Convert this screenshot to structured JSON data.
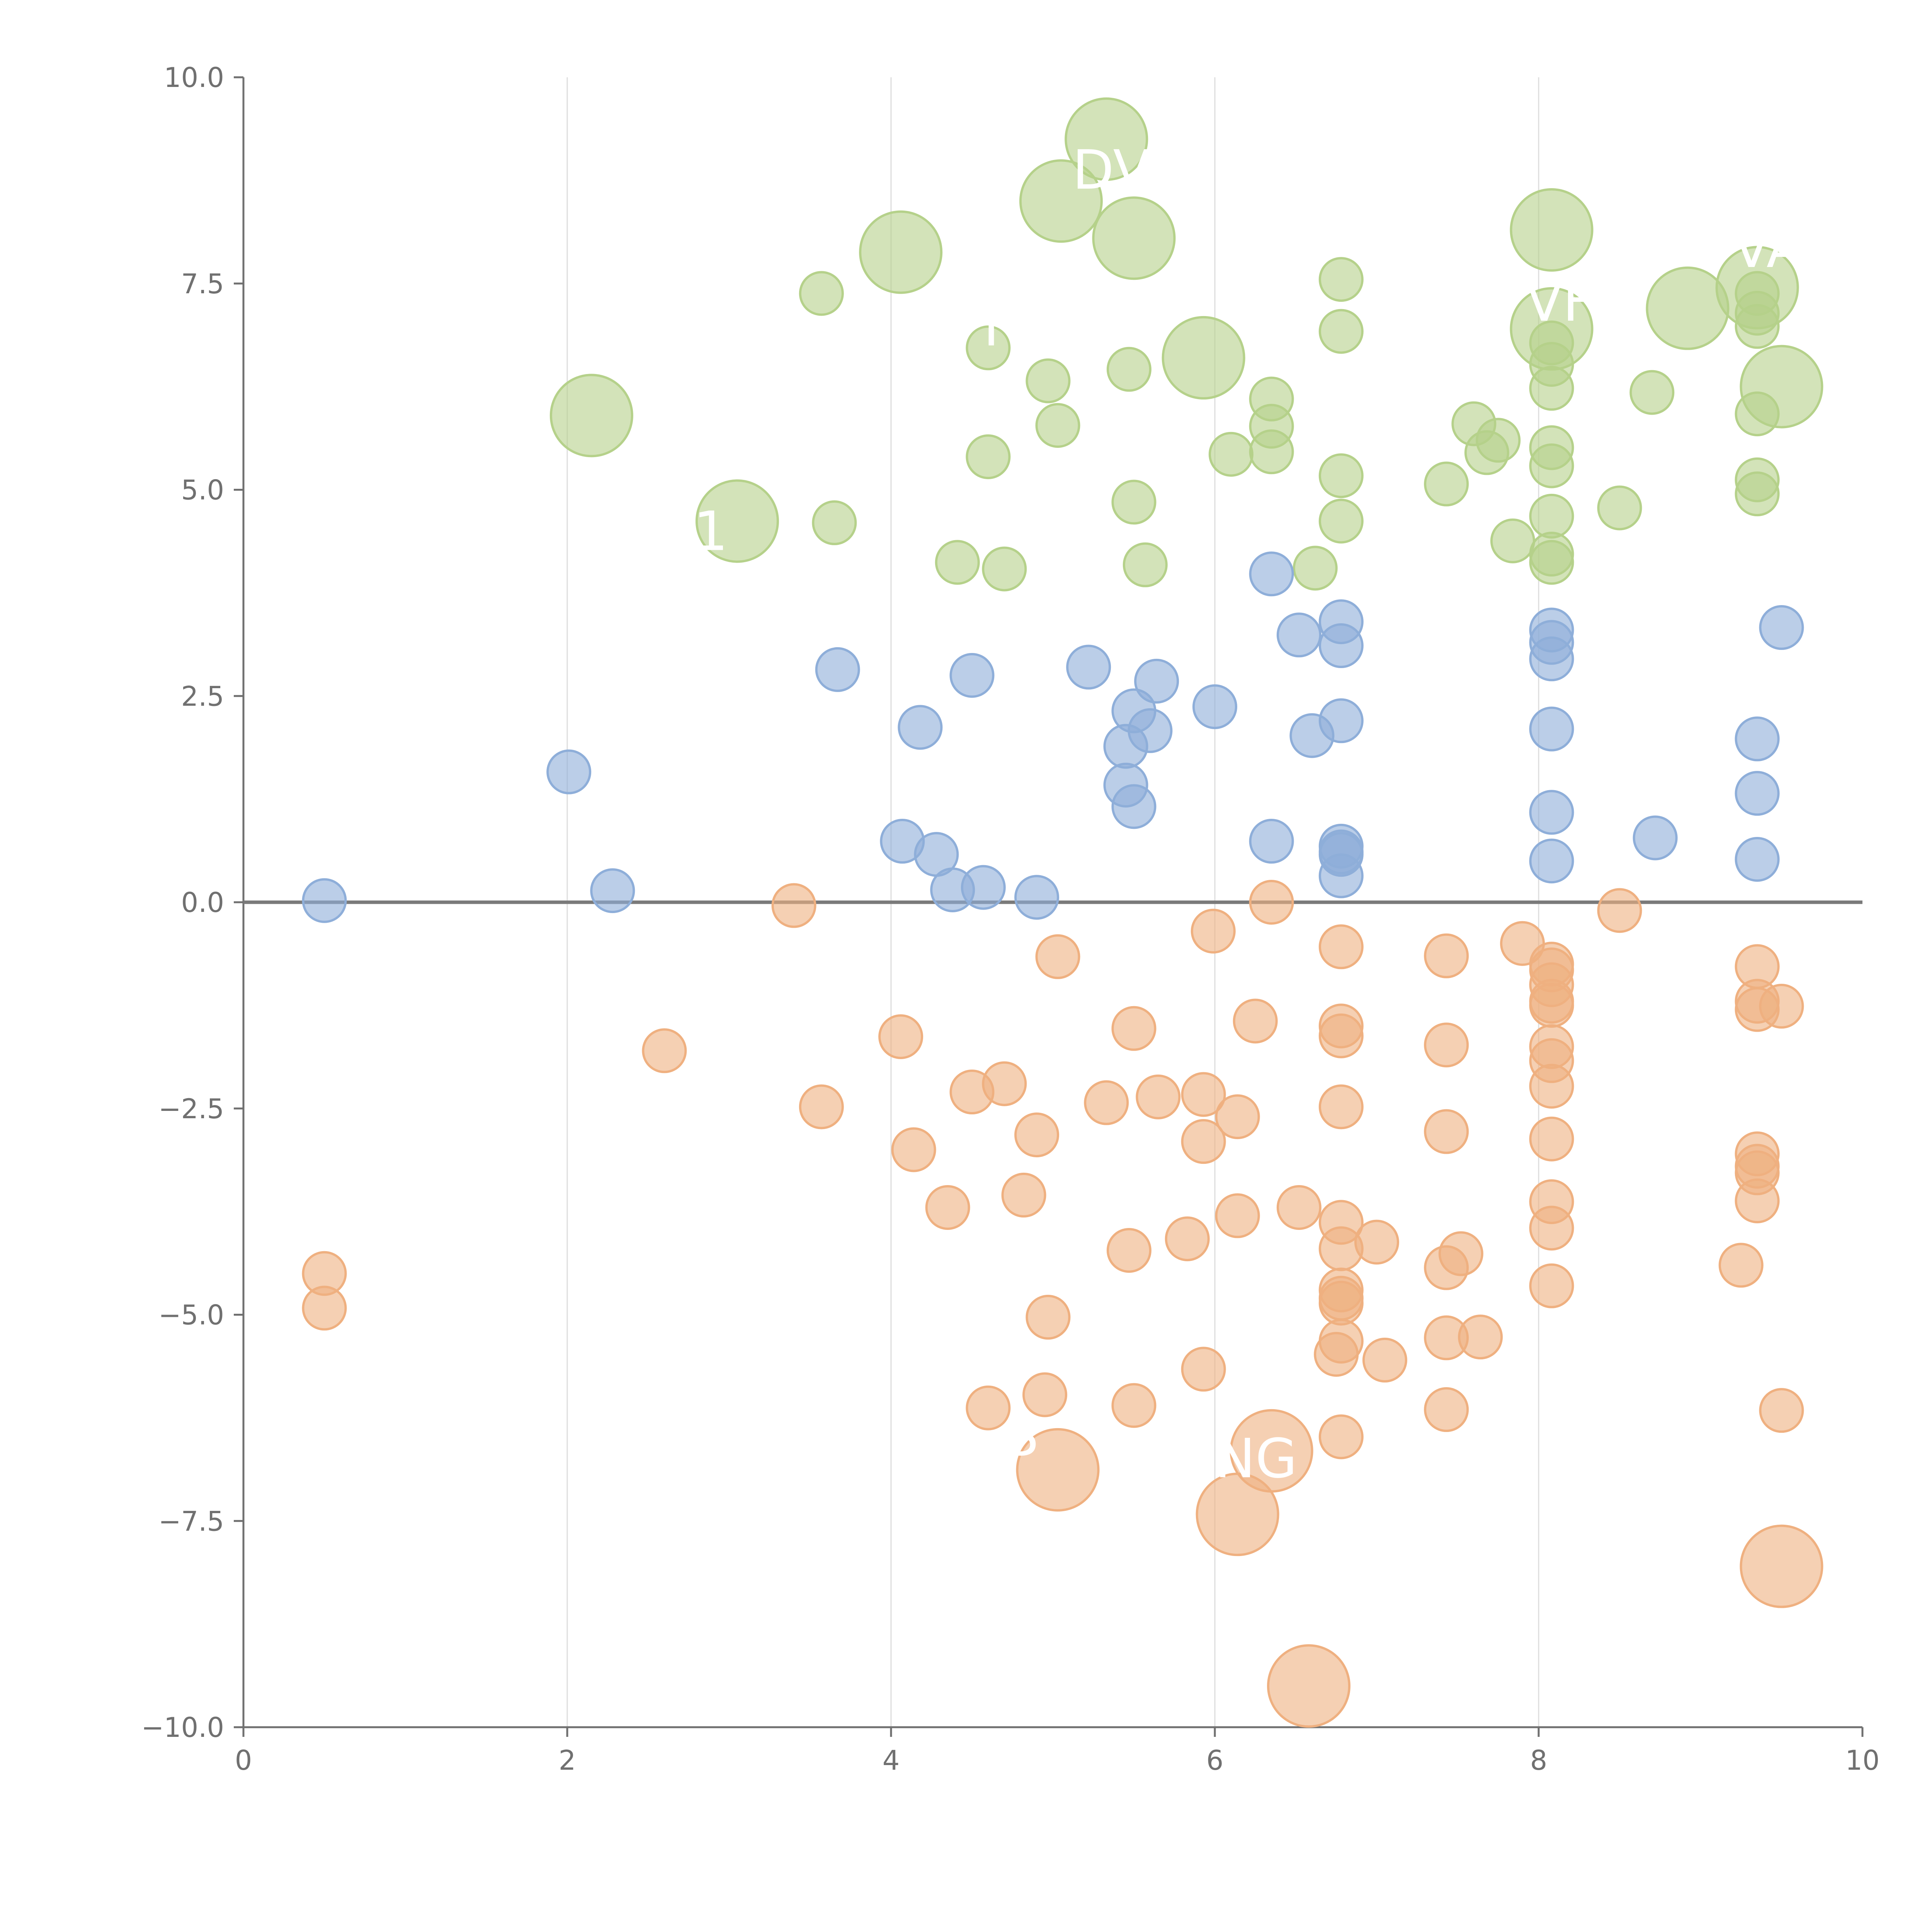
{
  "chart_data": {
    "type": "scatter",
    "title": "",
    "xlabel": "",
    "ylabel": "",
    "xlim": [
      0,
      10
    ],
    "ylim": [
      -10,
      10
    ],
    "grid": "vertical",
    "x_ticks": [
      "0",
      "2",
      "4",
      "6",
      "8",
      "10"
    ],
    "y_ticks": [
      "10.0",
      "7.5",
      "5.0",
      "2.5",
      "0.0",
      "−2.5",
      "−5.0",
      "−7.5",
      "−10.0"
    ],
    "colors": {
      "green": "#b5d18a",
      "blue": "#8eaed9",
      "orange": "#efb080",
      "zero_line": "#7a7a7a",
      "grid": "#dddddd",
      "axis": "#707070"
    },
    "series": [
      {
        "name": "green",
        "color_key": "green",
        "points": [
          [
            5.33,
            9.25,
            2
          ],
          [
            5.05,
            8.5,
            2
          ],
          [
            5.5,
            8.05,
            2
          ],
          [
            4.06,
            7.88,
            2
          ],
          [
            8.08,
            8.15,
            2
          ],
          [
            8.92,
            7.2,
            2
          ],
          [
            9.35,
            7.45,
            2
          ],
          [
            8.08,
            6.95,
            2
          ],
          [
            9.5,
            6.25,
            2
          ],
          [
            5.93,
            6.6,
            2
          ],
          [
            2.15,
            5.9,
            2
          ],
          [
            3.05,
            4.62,
            2
          ],
          [
            3.57,
            7.38,
            1
          ],
          [
            4.6,
            6.72,
            1
          ],
          [
            4.97,
            6.32,
            1
          ],
          [
            5.03,
            5.78,
            1
          ],
          [
            5.47,
            6.46,
            1
          ],
          [
            4.6,
            5.4,
            1
          ],
          [
            5.5,
            4.85,
            1
          ],
          [
            3.65,
            4.6,
            1
          ],
          [
            4.41,
            4.12,
            1
          ],
          [
            4.7,
            4.04,
            1
          ],
          [
            5.57,
            4.09,
            1
          ],
          [
            6.1,
            5.43,
            1
          ],
          [
            6.35,
            6.1,
            1
          ],
          [
            6.35,
            5.77,
            1
          ],
          [
            6.35,
            5.46,
            1
          ],
          [
            6.62,
            4.05,
            1
          ],
          [
            6.78,
            7.55,
            1
          ],
          [
            6.78,
            6.92,
            1
          ],
          [
            6.78,
            5.17,
            1
          ],
          [
            6.78,
            4.62,
            1
          ],
          [
            7.43,
            5.07,
            1
          ],
          [
            7.6,
            5.8,
            1
          ],
          [
            7.68,
            5.45,
            1
          ],
          [
            7.75,
            5.6,
            1
          ],
          [
            7.84,
            4.38,
            1
          ],
          [
            8.08,
            6.78,
            1
          ],
          [
            8.08,
            6.52,
            1
          ],
          [
            8.08,
            6.23,
            1
          ],
          [
            8.08,
            5.51,
            1
          ],
          [
            8.08,
            5.29,
            1
          ],
          [
            8.08,
            4.68,
            1
          ],
          [
            8.08,
            4.22,
            1
          ],
          [
            8.08,
            4.12,
            1
          ],
          [
            8.5,
            4.78,
            1
          ],
          [
            8.7,
            6.18,
            1
          ],
          [
            9.35,
            7.38,
            1
          ],
          [
            9.35,
            7.14,
            1
          ],
          [
            9.35,
            6.98,
            1
          ],
          [
            9.35,
            5.92,
            1
          ],
          [
            9.35,
            5.12,
            1
          ],
          [
            9.35,
            4.95,
            1
          ]
        ]
      },
      {
        "name": "blue",
        "color_key": "blue",
        "points": [
          [
            0.5,
            0.02,
            1
          ],
          [
            2.01,
            1.58,
            1
          ],
          [
            2.28,
            0.14,
            1
          ],
          [
            3.67,
            2.82,
            1
          ],
          [
            4.07,
            0.74,
            1
          ],
          [
            4.18,
            2.12,
            1
          ],
          [
            4.28,
            0.58,
            1
          ],
          [
            4.38,
            0.15,
            1
          ],
          [
            4.5,
            2.75,
            1
          ],
          [
            4.57,
            0.18,
            1
          ],
          [
            4.9,
            0.06,
            1
          ],
          [
            5.22,
            2.85,
            1
          ],
          [
            5.45,
            1.42,
            1
          ],
          [
            5.45,
            1.89,
            1
          ],
          [
            5.5,
            2.32,
            1
          ],
          [
            5.5,
            1.16,
            1
          ],
          [
            5.6,
            2.08,
            1
          ],
          [
            5.64,
            2.68,
            1
          ],
          [
            6.0,
            2.37,
            1
          ],
          [
            6.35,
            3.98,
            1
          ],
          [
            6.35,
            0.74,
            1
          ],
          [
            6.52,
            3.24,
            1
          ],
          [
            6.6,
            2.02,
            1
          ],
          [
            6.78,
            3.4,
            1
          ],
          [
            6.78,
            3.11,
            1
          ],
          [
            6.78,
            2.2,
            1
          ],
          [
            6.78,
            0.68,
            1
          ],
          [
            6.78,
            0.61,
            1
          ],
          [
            6.78,
            0.58,
            1
          ],
          [
            6.78,
            0.32,
            1
          ],
          [
            8.08,
            3.3,
            1
          ],
          [
            8.08,
            3.15,
            1
          ],
          [
            8.08,
            2.95,
            1
          ],
          [
            8.08,
            2.1,
            1
          ],
          [
            8.08,
            1.09,
            1
          ],
          [
            8.08,
            0.5,
            1
          ],
          [
            8.72,
            0.78,
            1
          ],
          [
            9.35,
            1.98,
            1
          ],
          [
            9.35,
            1.32,
            1
          ],
          [
            9.35,
            0.52,
            1
          ],
          [
            9.5,
            3.33,
            1
          ]
        ]
      },
      {
        "name": "orange",
        "color_key": "orange",
        "points": [
          [
            3.4,
            -0.04,
            1
          ],
          [
            6.35,
            0.0,
            1
          ],
          [
            5.99,
            -0.35,
            1
          ],
          [
            5.03,
            -0.66,
            1
          ],
          [
            6.78,
            -0.54,
            1
          ],
          [
            7.43,
            -0.65,
            1
          ],
          [
            7.9,
            -0.5,
            1
          ],
          [
            8.5,
            -0.1,
            1
          ],
          [
            8.08,
            -0.75,
            1
          ],
          [
            8.08,
            -0.82,
            1
          ],
          [
            8.08,
            -1.0,
            1
          ],
          [
            8.08,
            -1.2,
            1
          ],
          [
            8.08,
            -1.25,
            1
          ],
          [
            9.35,
            -0.78,
            1
          ],
          [
            9.35,
            -1.2,
            1
          ],
          [
            9.35,
            -1.3,
            1
          ],
          [
            9.5,
            -1.26,
            1
          ],
          [
            2.6,
            -1.8,
            1
          ],
          [
            4.06,
            -1.63,
            1
          ],
          [
            3.57,
            -2.48,
            1
          ],
          [
            4.14,
            -3.0,
            1
          ],
          [
            4.5,
            -2.3,
            1
          ],
          [
            4.7,
            -2.2,
            1
          ],
          [
            4.9,
            -2.82,
            1
          ],
          [
            5.5,
            -1.53,
            1
          ],
          [
            5.33,
            -2.43,
            1
          ],
          [
            5.65,
            -2.36,
            1
          ],
          [
            5.93,
            -2.33,
            1
          ],
          [
            5.93,
            -2.9,
            1
          ],
          [
            6.14,
            -2.6,
            1
          ],
          [
            6.25,
            -1.44,
            1
          ],
          [
            6.78,
            -1.5,
            1
          ],
          [
            6.78,
            -1.62,
            1
          ],
          [
            6.78,
            -2.48,
            1
          ],
          [
            7.43,
            -1.73,
            1
          ],
          [
            7.43,
            -2.78,
            1
          ],
          [
            8.08,
            -1.75,
            1
          ],
          [
            8.08,
            -1.92,
            1
          ],
          [
            8.08,
            -2.23,
            1
          ],
          [
            8.08,
            -2.87,
            1
          ],
          [
            4.35,
            -3.7,
            1
          ],
          [
            4.82,
            -3.55,
            1
          ],
          [
            5.47,
            -4.22,
            1
          ],
          [
            5.83,
            -4.08,
            1
          ],
          [
            6.14,
            -3.8,
            1
          ],
          [
            6.52,
            -3.7,
            1
          ],
          [
            6.78,
            -3.88,
            1
          ],
          [
            6.78,
            -4.2,
            1
          ],
          [
            7.0,
            -4.12,
            1
          ],
          [
            7.43,
            -4.43,
            1
          ],
          [
            7.52,
            -4.26,
            1
          ],
          [
            8.08,
            -3.63,
            1
          ],
          [
            8.08,
            -3.95,
            1
          ],
          [
            8.08,
            -4.65,
            1
          ],
          [
            9.35,
            -3.05,
            1
          ],
          [
            9.35,
            -3.2,
            1
          ],
          [
            9.35,
            -3.28,
            1
          ],
          [
            9.35,
            -3.62,
            1
          ],
          [
            9.25,
            -4.4,
            1
          ],
          [
            0.5,
            -4.5,
            1
          ],
          [
            0.5,
            -4.92,
            1
          ],
          [
            4.97,
            -5.03,
            1
          ],
          [
            4.6,
            -6.13,
            1
          ],
          [
            4.95,
            -5.97,
            1
          ],
          [
            5.5,
            -6.1,
            1
          ],
          [
            5.93,
            -5.66,
            1
          ],
          [
            6.78,
            -4.7,
            1
          ],
          [
            6.78,
            -4.8,
            1
          ],
          [
            6.78,
            -4.86,
            1
          ],
          [
            6.78,
            -5.32,
            1
          ],
          [
            6.75,
            -5.48,
            1
          ],
          [
            7.05,
            -5.55,
            1
          ],
          [
            6.78,
            -6.48,
            1
          ],
          [
            7.43,
            -5.28,
            1
          ],
          [
            7.43,
            -6.15,
            1
          ],
          [
            7.64,
            -5.27,
            1
          ],
          [
            9.5,
            -6.16,
            1
          ],
          [
            5.03,
            -6.88,
            2
          ],
          [
            6.35,
            -6.65,
            2
          ],
          [
            6.14,
            -7.42,
            2
          ],
          [
            6.58,
            -9.5,
            2
          ],
          [
            9.5,
            -8.05,
            2
          ]
        ]
      }
    ],
    "annotations": [
      {
        "text": "DV",
        "x": 5.12,
        "y": 8.65
      },
      {
        "text": "VA",
        "x": 9.2,
        "y": 7.7
      },
      {
        "text": "VF",
        "x": 7.92,
        "y": 7.05
      },
      {
        "text": "I",
        "x": 4.57,
        "y": 6.75
      },
      {
        "text": "1",
        "x": 2.78,
        "y": 4.27
      },
      {
        "text": "S",
        "x": 4.7,
        "y": -6.7
      },
      {
        "text": "NG",
        "x": 6.0,
        "y": -6.97
      }
    ]
  }
}
